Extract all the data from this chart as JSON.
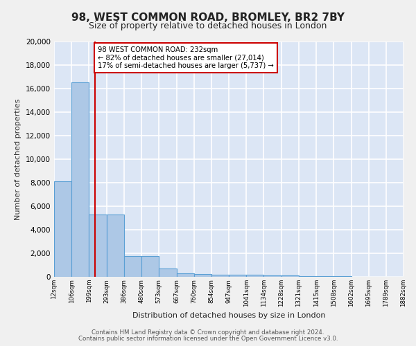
{
  "title_line1": "98, WEST COMMON ROAD, BROMLEY, BR2 7BY",
  "title_line2": "Size of property relative to detached houses in London",
  "xlabel": "Distribution of detached houses by size in London",
  "ylabel": "Number of detached properties",
  "bar_edges": [
    12,
    106,
    199,
    293,
    386,
    480,
    573,
    667,
    760,
    854,
    947,
    1041,
    1134,
    1228,
    1321,
    1415,
    1508,
    1602,
    1695,
    1789,
    1882
  ],
  "bar_heights": [
    8100,
    16500,
    5300,
    5300,
    1750,
    1750,
    700,
    300,
    250,
    200,
    150,
    150,
    100,
    100,
    50,
    50,
    30,
    20,
    15,
    10
  ],
  "bar_color": "#adc8e6",
  "bar_edge_color": "#5a9fd4",
  "property_line_x": 232,
  "property_line_color": "#cc0000",
  "annotation_text": "98 WEST COMMON ROAD: 232sqm\n← 82% of detached houses are smaller (27,014)\n17% of semi-detached houses are larger (5,737) →",
  "annotation_box_color": "#ffffff",
  "annotation_box_edge_color": "#cc0000",
  "ylim": [
    0,
    20000
  ],
  "yticks": [
    0,
    2000,
    4000,
    6000,
    8000,
    10000,
    12000,
    14000,
    16000,
    18000,
    20000
  ],
  "fig_bg_color": "#f0f0f0",
  "plot_bg_color": "#dce6f5",
  "grid_color": "#ffffff",
  "footer_line1": "Contains HM Land Registry data © Crown copyright and database right 2024.",
  "footer_line2": "Contains public sector information licensed under the Open Government Licence v3.0.",
  "tick_labels": [
    "12sqm",
    "106sqm",
    "199sqm",
    "293sqm",
    "386sqm",
    "480sqm",
    "573sqm",
    "667sqm",
    "760sqm",
    "854sqm",
    "947sqm",
    "1041sqm",
    "1134sqm",
    "1228sqm",
    "1321sqm",
    "1415sqm",
    "1508sqm",
    "1602sqm",
    "1695sqm",
    "1789sqm",
    "1882sqm"
  ]
}
